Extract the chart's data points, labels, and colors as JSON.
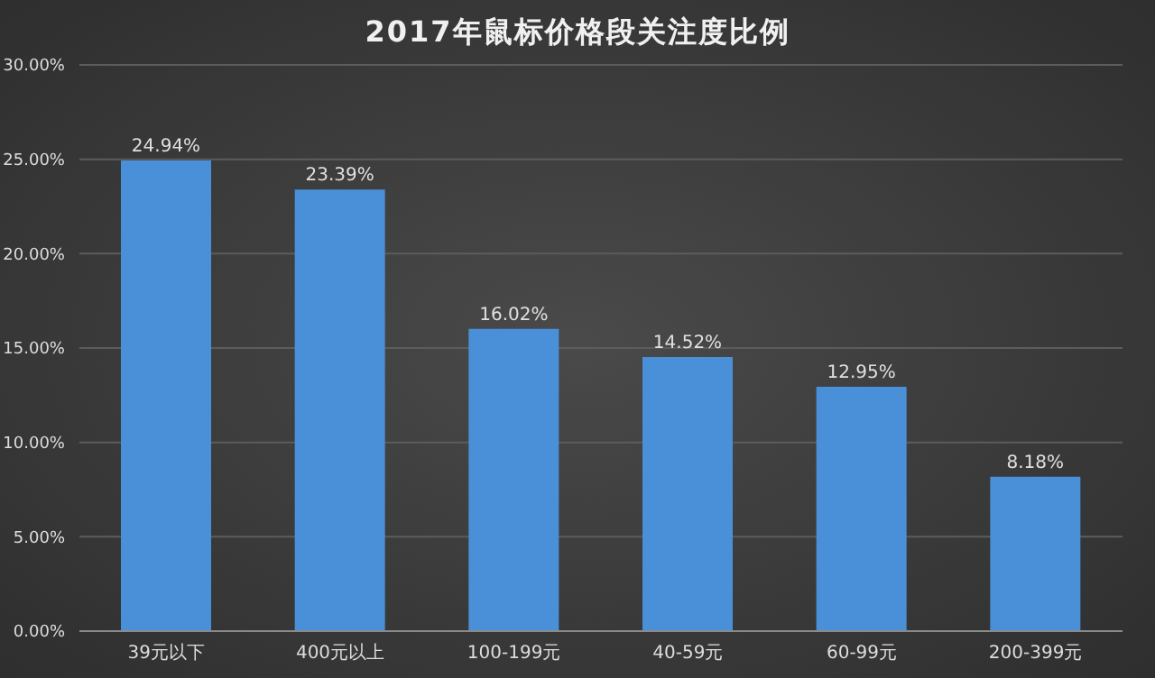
{
  "chart_data": {
    "type": "bar",
    "title": "2017年鼠标价格段关注度比例",
    "categories": [
      "39元以下",
      "400元以上",
      "100-199元",
      "40-59元",
      "60-99元",
      "200-399元"
    ],
    "values": [
      24.94,
      23.39,
      16.02,
      14.52,
      12.95,
      8.18
    ],
    "value_labels": [
      "24.94%",
      "23.39%",
      "16.02%",
      "14.52%",
      "12.95%",
      "8.18%"
    ],
    "color": "#4a90d9",
    "ylim": [
      0,
      30
    ],
    "yticks": [
      {
        "value": 0,
        "label": "0.00%"
      },
      {
        "value": 5,
        "label": "5.00%"
      },
      {
        "value": 10,
        "label": "10.00%"
      },
      {
        "value": 15,
        "label": "15.00%"
      },
      {
        "value": 20,
        "label": "20.00%"
      },
      {
        "value": 25,
        "label": "25.00%"
      },
      {
        "value": 30,
        "label": "30.00%"
      }
    ],
    "grid": "y"
  }
}
